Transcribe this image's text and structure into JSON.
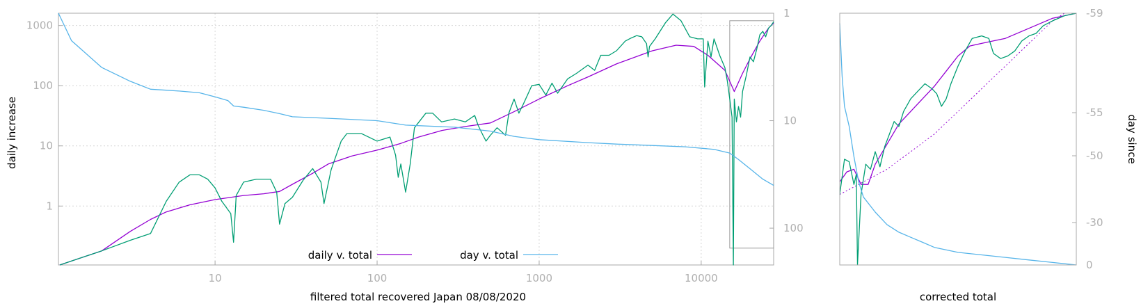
{
  "chart_data": [
    {
      "type": "line",
      "xlabel": "filtered total recovered Japan 08/08/2020",
      "ylabel": "daily increase",
      "y2label": "",
      "x_scale": "log",
      "y_scale": "log",
      "y2_scale": "log-reversed",
      "xlim": [
        1.08,
        28000
      ],
      "ylim": [
        0.105,
        1600
      ],
      "y2lim": [
        1,
        220
      ],
      "x_ticks": [
        {
          "v": 10,
          "t": "10"
        },
        {
          "v": 100,
          "t": "100"
        },
        {
          "v": 1000,
          "t": "1000"
        },
        {
          "v": 10000,
          "t": "10000"
        }
      ],
      "y_ticks": [
        {
          "v": 1,
          "t": "1"
        },
        {
          "v": 10,
          "t": "10"
        },
        {
          "v": 100,
          "t": "100"
        },
        {
          "v": 1000,
          "t": "1000"
        }
      ],
      "y2_ticks": [
        {
          "v": 1,
          "t": "1"
        },
        {
          "v": 10,
          "t": "10"
        },
        {
          "v": 100,
          "t": "100"
        }
      ],
      "grid": true,
      "legend_position": "bottom-center",
      "inset_box": {
        "x": [
          15000,
          28000
        ],
        "y": [
          0.2,
          1200
        ]
      },
      "series": [
        {
          "name": "daily v. total",
          "color": "#9400d3",
          "axis": "y",
          "points": [
            [
              1.1,
              0.105
            ],
            [
              2,
              0.18
            ],
            [
              3,
              0.38
            ],
            [
              4,
              0.6
            ],
            [
              5,
              0.8
            ],
            [
              7,
              1.05
            ],
            [
              10,
              1.28
            ],
            [
              15,
              1.5
            ],
            [
              20,
              1.6
            ],
            [
              25,
              1.75
            ],
            [
              30,
              2.3
            ],
            [
              40,
              3.5
            ],
            [
              50,
              5
            ],
            [
              70,
              6.8
            ],
            [
              100,
              8.5
            ],
            [
              140,
              11
            ],
            [
              180,
              14
            ],
            [
              250,
              18
            ],
            [
              350,
              21
            ],
            [
              500,
              24
            ],
            [
              700,
              37
            ],
            [
              1000,
              60
            ],
            [
              1500,
              100
            ],
            [
              2000,
              140
            ],
            [
              3000,
              230
            ],
            [
              5000,
              380
            ],
            [
              7000,
              470
            ],
            [
              9000,
              450
            ],
            [
              11000,
              320
            ],
            [
              14000,
              180
            ],
            [
              16000,
              80
            ],
            [
              18000,
              160
            ],
            [
              20000,
              280
            ],
            [
              23000,
              550
            ],
            [
              26000,
              900
            ],
            [
              28000,
              1100
            ]
          ]
        },
        {
          "name": "",
          "color": "#009e73",
          "axis": "y",
          "points": [
            [
              1.1,
              0.105
            ],
            [
              2,
              0.18
            ],
            [
              3,
              0.27
            ],
            [
              4,
              0.35
            ],
            [
              5,
              1.2
            ],
            [
              6,
              2.5
            ],
            [
              7,
              3.3
            ],
            [
              8,
              3.3
            ],
            [
              9,
              2.8
            ],
            [
              10,
              2
            ],
            [
              11,
              1.2
            ],
            [
              12.5,
              0.75
            ],
            [
              13,
              0.25
            ],
            [
              13.5,
              1.5
            ],
            [
              15,
              2.5
            ],
            [
              18,
              2.8
            ],
            [
              22,
              2.8
            ],
            [
              24,
              1.7
            ],
            [
              25,
              0.5
            ],
            [
              27,
              1.1
            ],
            [
              30,
              1.4
            ],
            [
              35,
              2.7
            ],
            [
              40,
              4.2
            ],
            [
              45,
              2.5
            ],
            [
              47,
              1.1
            ],
            [
              52,
              4
            ],
            [
              60,
              12
            ],
            [
              65,
              16
            ],
            [
              80,
              16
            ],
            [
              100,
              12
            ],
            [
              120,
              14
            ],
            [
              130,
              7
            ],
            [
              135,
              3
            ],
            [
              140,
              5
            ],
            [
              150,
              1.7
            ],
            [
              160,
              5
            ],
            [
              170,
              20
            ],
            [
              200,
              35
            ],
            [
              220,
              35
            ],
            [
              250,
              25
            ],
            [
              300,
              28
            ],
            [
              350,
              25
            ],
            [
              400,
              32
            ],
            [
              420,
              22
            ],
            [
              450,
              15
            ],
            [
              470,
              12
            ],
            [
              500,
              15
            ],
            [
              550,
              20
            ],
            [
              620,
              15
            ],
            [
              650,
              35
            ],
            [
              700,
              60
            ],
            [
              750,
              35
            ],
            [
              800,
              50
            ],
            [
              900,
              100
            ],
            [
              1000,
              105
            ],
            [
              1100,
              70
            ],
            [
              1200,
              110
            ],
            [
              1300,
              75
            ],
            [
              1500,
              130
            ],
            [
              1700,
              160
            ],
            [
              2000,
              220
            ],
            [
              2200,
              180
            ],
            [
              2400,
              320
            ],
            [
              2700,
              320
            ],
            [
              3000,
              380
            ],
            [
              3400,
              550
            ],
            [
              3700,
              620
            ],
            [
              4000,
              680
            ],
            [
              4300,
              650
            ],
            [
              4600,
              500
            ],
            [
              4700,
              300
            ],
            [
              4800,
              450
            ],
            [
              5200,
              600
            ],
            [
              6000,
              1100
            ],
            [
              6700,
              1550
            ],
            [
              7500,
              1200
            ],
            [
              8500,
              650
            ],
            [
              9500,
              600
            ],
            [
              10300,
              600
            ],
            [
              10500,
              95
            ],
            [
              11000,
              550
            ],
            [
              11500,
              300
            ],
            [
              12000,
              600
            ],
            [
              13000,
              320
            ],
            [
              14000,
              200
            ],
            [
              14500,
              120
            ],
            [
              15000,
              60
            ],
            [
              15500,
              30
            ],
            [
              15800,
              0.105
            ],
            [
              16000,
              60
            ],
            [
              16500,
              25
            ],
            [
              17000,
              45
            ],
            [
              17500,
              30
            ],
            [
              18000,
              80
            ],
            [
              19000,
              150
            ],
            [
              20000,
              300
            ],
            [
              21000,
              250
            ],
            [
              22000,
              400
            ],
            [
              23000,
              700
            ],
            [
              24000,
              800
            ],
            [
              25000,
              650
            ],
            [
              26000,
              900
            ],
            [
              27000,
              1000
            ],
            [
              28000,
              1150
            ]
          ]
        },
        {
          "name": "day v. total",
          "color": "#56b4e9",
          "axis": "y2",
          "points": [
            [
              1.08,
              1
            ],
            [
              1.3,
              1.8
            ],
            [
              2,
              3.2
            ],
            [
              3,
              4.3
            ],
            [
              4,
              5.1
            ],
            [
              5,
              5.2
            ],
            [
              6,
              5.3
            ],
            [
              8,
              5.5
            ],
            [
              10,
              6
            ],
            [
              12,
              6.5
            ],
            [
              13,
              7.3
            ],
            [
              15,
              7.5
            ],
            [
              20,
              8
            ],
            [
              25,
              8.6
            ],
            [
              30,
              9.2
            ],
            [
              50,
              9.5
            ],
            [
              100,
              10
            ],
            [
              150,
              11
            ],
            [
              300,
              11.5
            ],
            [
              500,
              12.5
            ],
            [
              700,
              14
            ],
            [
              1000,
              15
            ],
            [
              2000,
              16
            ],
            [
              3000,
              16.5
            ],
            [
              5000,
              17
            ],
            [
              8000,
              17.5
            ],
            [
              12000,
              18.5
            ],
            [
              15000,
              20
            ],
            [
              17000,
              23
            ],
            [
              20000,
              28
            ],
            [
              24000,
              35
            ],
            [
              28000,
              40
            ]
          ]
        }
      ]
    },
    {
      "type": "line",
      "xlabel": "corrected total",
      "ylabel": "",
      "y2label": "day since",
      "y2_ticks": [
        {
          "v": -59,
          "t": "-59"
        },
        {
          "v": -55,
          "t": "-55"
        },
        {
          "v": -50,
          "t": "-50"
        },
        {
          "v": -30,
          "t": "-30"
        },
        {
          "v": 0,
          "t": "0"
        }
      ],
      "grid": false,
      "series": [
        {
          "name": "",
          "color": "#9400d3",
          "dashed": true,
          "points": [
            [
              0,
              0.28
            ],
            [
              0.2,
              0.38
            ],
            [
              0.4,
              0.52
            ],
            [
              0.6,
              0.7
            ],
            [
              0.8,
              0.88
            ],
            [
              0.9,
              0.97
            ],
            [
              0.95,
              1
            ]
          ]
        },
        {
          "name": "",
          "color": "#9400d3",
          "points": [
            [
              0,
              0.33
            ],
            [
              0.03,
              0.37
            ],
            [
              0.06,
              0.38
            ],
            [
              0.09,
              0.32
            ],
            [
              0.12,
              0.32
            ],
            [
              0.15,
              0.4
            ],
            [
              0.2,
              0.48
            ],
            [
              0.25,
              0.56
            ],
            [
              0.3,
              0.61
            ],
            [
              0.35,
              0.66
            ],
            [
              0.4,
              0.71
            ],
            [
              0.45,
              0.77
            ],
            [
              0.5,
              0.83
            ],
            [
              0.55,
              0.87
            ],
            [
              0.6,
              0.88
            ],
            [
              0.65,
              0.89
            ],
            [
              0.7,
              0.9
            ],
            [
              0.8,
              0.94
            ],
            [
              0.9,
              0.98
            ],
            [
              1,
              1
            ]
          ]
        },
        {
          "name": "",
          "color": "#009e73",
          "points": [
            [
              0,
              0.28
            ],
            [
              0.01,
              0.35
            ],
            [
              0.02,
              0.42
            ],
            [
              0.04,
              0.41
            ],
            [
              0.06,
              0.32
            ],
            [
              0.07,
              0.36
            ],
            [
              0.075,
              0
            ],
            [
              0.09,
              0.28
            ],
            [
              0.11,
              0.4
            ],
            [
              0.13,
              0.38
            ],
            [
              0.15,
              0.45
            ],
            [
              0.17,
              0.39
            ],
            [
              0.19,
              0.47
            ],
            [
              0.21,
              0.52
            ],
            [
              0.23,
              0.57
            ],
            [
              0.25,
              0.55
            ],
            [
              0.27,
              0.61
            ],
            [
              0.3,
              0.66
            ],
            [
              0.33,
              0.69
            ],
            [
              0.36,
              0.72
            ],
            [
              0.39,
              0.7
            ],
            [
              0.41,
              0.68
            ],
            [
              0.43,
              0.63
            ],
            [
              0.45,
              0.66
            ],
            [
              0.47,
              0.72
            ],
            [
              0.5,
              0.79
            ],
            [
              0.53,
              0.85
            ],
            [
              0.56,
              0.9
            ],
            [
              0.6,
              0.91
            ],
            [
              0.63,
              0.9
            ],
            [
              0.65,
              0.84
            ],
            [
              0.68,
              0.82
            ],
            [
              0.71,
              0.83
            ],
            [
              0.74,
              0.85
            ],
            [
              0.77,
              0.89
            ],
            [
              0.8,
              0.91
            ],
            [
              0.83,
              0.92
            ],
            [
              0.86,
              0.95
            ],
            [
              0.9,
              0.97
            ],
            [
              0.95,
              0.99
            ],
            [
              1,
              1
            ]
          ]
        },
        {
          "name": "",
          "color": "#56b4e9",
          "points": [
            [
              0,
              0.96
            ],
            [
              0.01,
              0.75
            ],
            [
              0.02,
              0.63
            ],
            [
              0.04,
              0.55
            ],
            [
              0.06,
              0.43
            ],
            [
              0.08,
              0.33
            ],
            [
              0.1,
              0.27
            ],
            [
              0.15,
              0.21
            ],
            [
              0.2,
              0.16
            ],
            [
              0.25,
              0.13
            ],
            [
              0.3,
              0.11
            ],
            [
              0.35,
              0.09
            ],
            [
              0.4,
              0.07
            ],
            [
              0.5,
              0.05
            ],
            [
              0.6,
              0.04
            ],
            [
              0.7,
              0.03
            ],
            [
              0.8,
              0.02
            ],
            [
              0.9,
              0.01
            ],
            [
              1,
              0
            ]
          ]
        }
      ]
    }
  ]
}
